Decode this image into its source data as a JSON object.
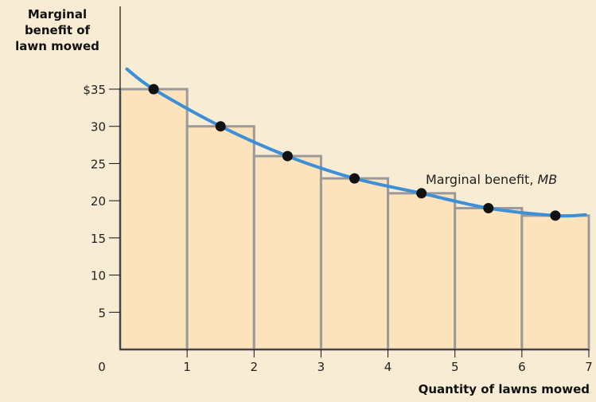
{
  "chart_data": {
    "type": "bar",
    "ylabel_lines": [
      "Marginal",
      "benefit of",
      "lawn mowed"
    ],
    "xlabel": "Quantity of lawns mowed",
    "x_ticks": [
      "0",
      "1",
      "2",
      "3",
      "4",
      "5",
      "6",
      "7"
    ],
    "y_ticks": [
      {
        "value": 5,
        "label": "5"
      },
      {
        "value": 10,
        "label": "10"
      },
      {
        "value": 15,
        "label": "15"
      },
      {
        "value": 20,
        "label": "20"
      },
      {
        "value": 25,
        "label": "25"
      },
      {
        "value": 30,
        "label": "30"
      },
      {
        "value": 35,
        "label": "$35"
      }
    ],
    "xlim": [
      0,
      7
    ],
    "ylim": [
      0,
      40
    ],
    "bars": {
      "categories": [
        "1",
        "2",
        "3",
        "4",
        "5",
        "6",
        "7"
      ],
      "values": [
        35,
        30,
        26,
        23,
        21,
        19,
        18
      ]
    },
    "curve": {
      "label_text": "Marginal benefit, ",
      "label_italic": "MB",
      "points": [
        {
          "x": 0.5,
          "y": 35
        },
        {
          "x": 1.5,
          "y": 30
        },
        {
          "x": 2.5,
          "y": 26
        },
        {
          "x": 3.5,
          "y": 23
        },
        {
          "x": 4.5,
          "y": 21
        },
        {
          "x": 5.5,
          "y": 19
        },
        {
          "x": 6.5,
          "y": 18
        }
      ]
    },
    "colors": {
      "background": "#f8ecd4",
      "bar_fill": "#fde3bc",
      "bar_stroke": "#9a9a9a",
      "curve": "#3d8fd6",
      "point": "#111111",
      "axis": "#111111"
    }
  }
}
